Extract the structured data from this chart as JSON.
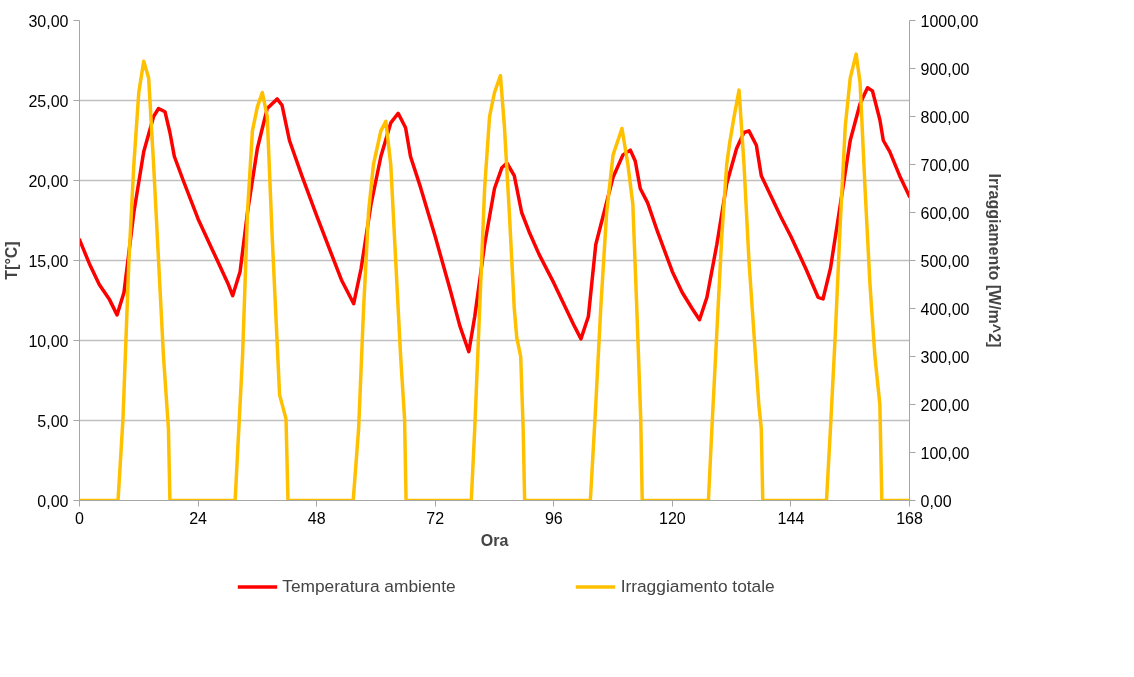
{
  "chart_data": {
    "type": "line",
    "xlabel": "Ora",
    "ylabel": "T[°C]",
    "y2label": "Irraggiamento [W/m^2]",
    "xlim": [
      0,
      168
    ],
    "xticks": [
      0,
      24,
      48,
      72,
      96,
      120,
      144,
      168
    ],
    "ylim": [
      0,
      30
    ],
    "yticks": [
      {
        "value": 0,
        "label": "0,00"
      },
      {
        "value": 5,
        "label": "5,00"
      },
      {
        "value": 10,
        "label": "10,00"
      },
      {
        "value": 15,
        "label": "15,00"
      },
      {
        "value": 20,
        "label": "20,00"
      },
      {
        "value": 25,
        "label": "25,00"
      },
      {
        "value": 30,
        "label": "30,00"
      }
    ],
    "y2lim": [
      0,
      1000
    ],
    "y2ticks": [
      {
        "value": 0,
        "label": "0,00"
      },
      {
        "value": 100,
        "label": "100,00"
      },
      {
        "value": 200,
        "label": "200,00"
      },
      {
        "value": 300,
        "label": "300,00"
      },
      {
        "value": 400,
        "label": "400,00"
      },
      {
        "value": 500,
        "label": "500,00"
      },
      {
        "value": 600,
        "label": "600,00"
      },
      {
        "value": 700,
        "label": "700,00"
      },
      {
        "value": 800,
        "label": "800,00"
      },
      {
        "value": 900,
        "label": "900,00"
      },
      {
        "value": 1000,
        "label": "1000,00"
      }
    ],
    "grid": "y",
    "legend": "bottom",
    "line_style": "solid",
    "marker": "none",
    "series": [
      {
        "name": "Temperatura ambiente",
        "color": "#ff0000",
        "x": [
          0,
          2,
          4,
          6,
          7.6,
          9,
          11,
          13,
          15,
          16,
          17.3,
          18.3,
          19.2,
          21,
          24,
          27,
          30,
          31,
          32.5,
          34,
          36,
          38,
          40,
          41,
          42.5,
          45,
          48,
          51,
          53,
          55.5,
          57,
          59,
          61,
          63,
          64.5,
          66,
          67,
          69,
          72,
          75,
          77,
          78.8,
          80,
          82,
          84,
          85.5,
          86.5,
          88,
          89.5,
          91,
          93,
          96,
          98,
          100,
          101.5,
          103,
          104.5,
          106,
          108,
          110,
          111.5,
          112.5,
          113.5,
          115,
          117,
          120,
          122,
          124,
          125.5,
          127,
          129,
          131,
          133,
          134.5,
          135.5,
          137,
          138,
          140,
          142,
          144,
          147,
          149.5,
          150.5,
          152,
          154,
          156,
          158,
          159.5,
          160.5,
          162,
          162.7,
          164,
          166,
          168
        ],
        "values": [
          16.3,
          14.8,
          13.5,
          12.6,
          11.6,
          13,
          18,
          21.8,
          24,
          24.5,
          24.3,
          23,
          21.5,
          20,
          17.6,
          15.6,
          13.6,
          12.8,
          14.3,
          18,
          22,
          24.5,
          25.1,
          24.7,
          22.5,
          20.3,
          17.8,
          15.4,
          13.8,
          12.3,
          14.5,
          18.5,
          21.5,
          23.6,
          24.2,
          23.3,
          21.5,
          19.6,
          16.5,
          13.2,
          10.9,
          9.3,
          11.5,
          16,
          19.5,
          20.8,
          21.1,
          20.3,
          18,
          16.8,
          15.4,
          13.6,
          12.3,
          11,
          10.1,
          11.5,
          16,
          17.8,
          20.2,
          21.6,
          21.9,
          21.2,
          19.5,
          18.6,
          16.8,
          14.3,
          13,
          12,
          11.3,
          12.7,
          16,
          19.8,
          22,
          23,
          23.1,
          22.2,
          20.3,
          19,
          17.7,
          16.5,
          14.5,
          12.7,
          12.6,
          14.5,
          18.5,
          22.5,
          24.8,
          25.8,
          25.6,
          23.8,
          22.5,
          21.8,
          20.3,
          19
        ]
      },
      {
        "name": "Irraggiamento totale",
        "color": "#ffc000",
        "axis": "y2",
        "x": [
          0,
          7.8,
          8.8,
          10,
          11,
          12,
          13,
          14,
          15,
          16,
          17,
          18,
          18.3,
          31.5,
          32,
          33,
          34,
          35,
          36,
          37,
          38,
          39,
          40.5,
          41.8,
          42.2,
          55.4,
          56.5,
          57.5,
          58.5,
          59.5,
          61,
          62,
          63,
          64,
          65,
          65.8,
          66.1,
          79.3,
          80,
          81,
          82,
          83,
          84,
          85.2,
          86,
          87,
          88,
          88.5,
          89.3,
          89.8,
          90.1,
          103.4,
          104.5,
          105.5,
          106.7,
          108,
          109.8,
          111,
          112,
          112.8,
          113.6,
          113.9,
          127.3,
          128,
          129,
          130,
          131,
          131.6,
          132.5,
          133.5,
          134.5,
          135.5,
          136.5,
          137.5,
          138,
          138.3,
          151.2,
          152,
          153,
          154,
          155,
          156,
          157.2,
          158,
          159,
          160,
          161,
          162,
          162.4,
          168
        ],
        "values": [
          0,
          0,
          170,
          500,
          700,
          850,
          915,
          880,
          700,
          500,
          300,
          150,
          0,
          0,
          100,
          300,
          600,
          770,
          820,
          850,
          800,
          550,
          220,
          170,
          0,
          0,
          150,
          400,
          600,
          700,
          770,
          790,
          700,
          500,
          300,
          170,
          0,
          0,
          150,
          400,
          650,
          800,
          850,
          885,
          780,
          600,
          400,
          340,
          300,
          150,
          0,
          0,
          200,
          400,
          600,
          720,
          775,
          700,
          617,
          400,
          170,
          0,
          0,
          150,
          350,
          550,
          700,
          745,
          800,
          855,
          700,
          500,
          350,
          200,
          150,
          0,
          0,
          150,
          350,
          580,
          780,
          880,
          930,
          870,
          650,
          450,
          300,
          200,
          0,
          0
        ]
      }
    ]
  }
}
